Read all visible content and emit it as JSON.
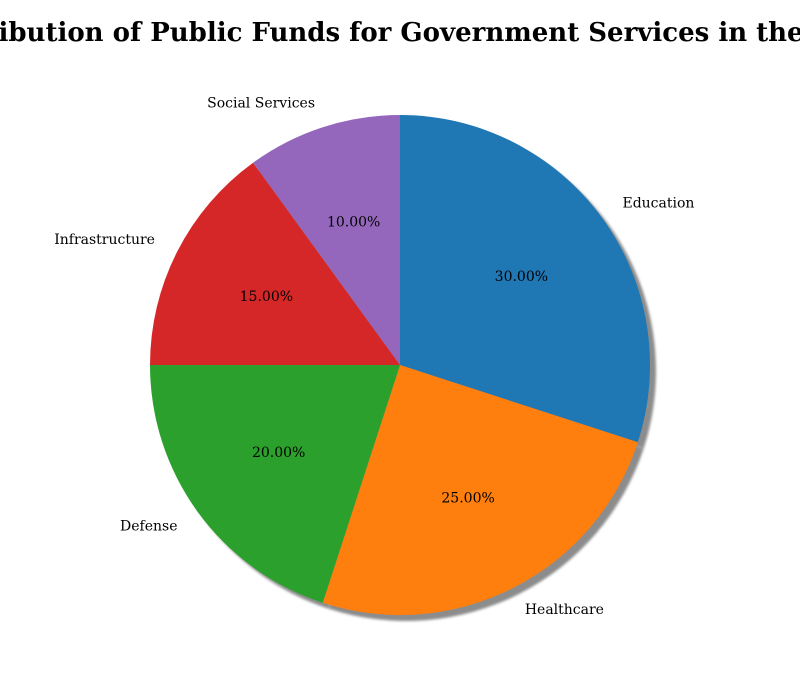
{
  "chart_data": {
    "type": "pie",
    "title": "Distribution of Public Funds for Government Services in the USA",
    "categories": [
      "Education",
      "Healthcare",
      "Defense",
      "Infrastructure",
      "Social Services"
    ],
    "values": [
      30,
      25,
      20,
      15,
      10
    ],
    "percent_labels": [
      "30.00%",
      "25.00%",
      "20.00%",
      "15.00%",
      "10.00%"
    ],
    "colors": [
      "#1f77b4",
      "#ff7f0e",
      "#2ca02c",
      "#d62728",
      "#9467bd"
    ],
    "start_angle_deg": 90,
    "direction": "clockwise",
    "shadow": true,
    "legend": "none"
  }
}
